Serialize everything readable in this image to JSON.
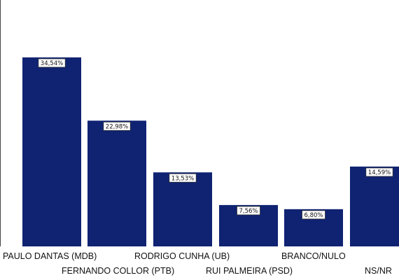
{
  "chart_data": {
    "type": "bar",
    "categories": [
      "PAULO DANTAS (MDB)",
      "FERNANDO COLLOR (PTB)",
      "RODRIGO CUNHA (UB)",
      "RUI PALMEIRA (PSD)",
      "BRANCO/NULO",
      "NS/NR"
    ],
    "values": [
      34.54,
      22.98,
      13.53,
      7.56,
      6.8,
      14.59
    ],
    "data_labels": [
      "34,54%",
      "22,98%",
      "13,53%",
      "7,56%",
      "6,80%",
      "14,59%"
    ],
    "ylim": [
      0,
      35
    ],
    "grid": false,
    "legend": "none",
    "colors": {
      "bar": "#0f2372",
      "axis": "#444444"
    }
  }
}
